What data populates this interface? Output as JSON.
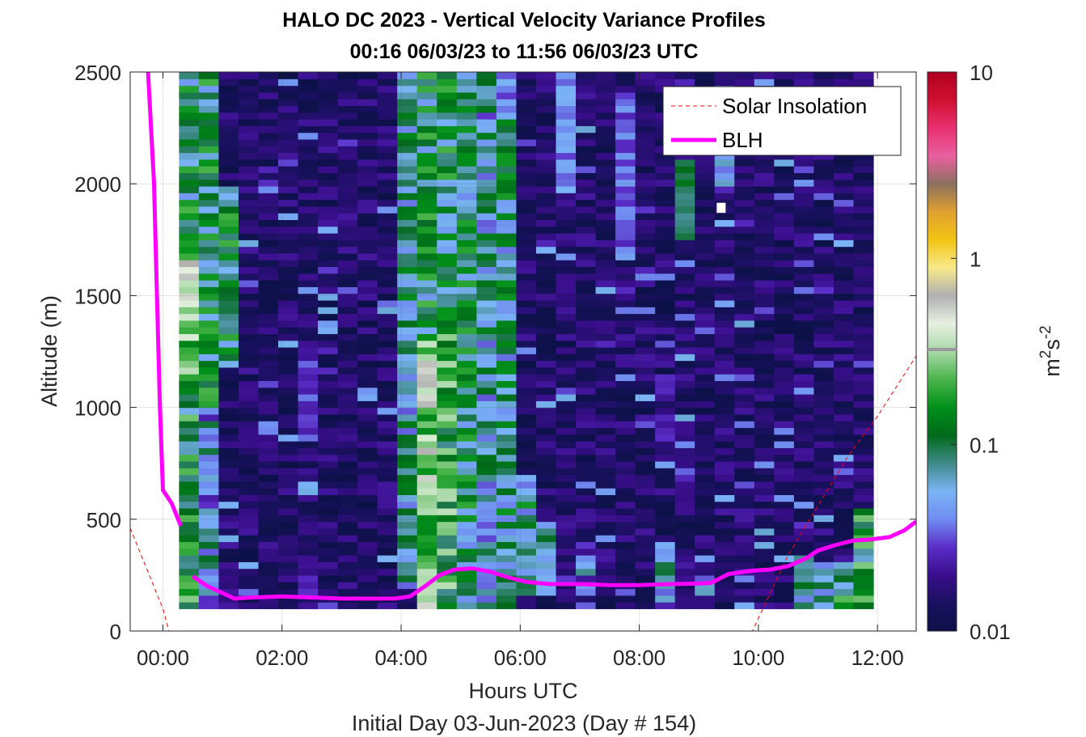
{
  "chart_data": {
    "type": "heatmap",
    "title_line1": "HALO DC 2023 - Vertical Velocity Variance Profiles",
    "title_line2": "00:16 06/03/23 to 11:56 06/03/23  UTC",
    "xlabel": "Hours UTC",
    "ylabel": "Altitude (m)",
    "footer": "Initial Day 03-Jun-2023 (Day # 154)",
    "xlim": [
      -0.55,
      12.65
    ],
    "ylim": [
      0,
      2500
    ],
    "x_ticks": [
      0,
      2,
      4,
      6,
      8,
      10,
      12
    ],
    "x_tick_labels": [
      "00:00",
      "02:00",
      "04:00",
      "06:00",
      "08:00",
      "10:00",
      "12:00"
    ],
    "y_ticks": [
      0,
      500,
      1000,
      1500,
      2000,
      2500
    ],
    "y_tick_labels": [
      "0",
      "500",
      "1000",
      "1500",
      "2000",
      "2500"
    ],
    "grid": true,
    "legend_position": "top-right",
    "legend": [
      {
        "label": "Solar Insolation",
        "color": "#ff0000",
        "style": "dashed"
      },
      {
        "label": "BLH",
        "color": "#ff00ff",
        "style": "solid"
      }
    ],
    "colorbar": {
      "label_base": "m",
      "label_exp1": "2",
      "label_mid": "s",
      "label_exp2": "-2",
      "scale": "log",
      "ticks": [
        0.01,
        0.1,
        1,
        10
      ],
      "tick_labels": [
        "0.01",
        "0.1",
        "1",
        "10"
      ],
      "colors": [
        "#0c1148",
        "#1a1060",
        "#3a0e8c",
        "#5a2ec8",
        "#6f8cf0",
        "#7ab4f5",
        "#3f8a8a",
        "#006a1a",
        "#00901a",
        "#4ab44a",
        "#a8d8a8",
        "#e6f0e0",
        "#b0b0b0",
        "#f7e98a",
        "#f2c414",
        "#e0a030",
        "#8c7060",
        "#e860a0",
        "#e83070",
        "#d01030",
        "#b00020"
      ]
    },
    "heatmap": {
      "time_start_hours": 0.27,
      "time_end_hours": 11.93,
      "bin_minutes": 20,
      "altitude_start_m": 100,
      "altitude_end_m": 2500,
      "gate_m": 30,
      "background_log10": -2,
      "column_profiles_log10": [
        {
          "col": 0,
          "lo": 100,
          "hi": 1000,
          "v": -0.9
        },
        {
          "col": 0,
          "lo": 1000,
          "hi": 1400,
          "v": -0.7
        },
        {
          "col": 0,
          "lo": 1400,
          "hi": 1700,
          "v": -0.5
        },
        {
          "col": 0,
          "lo": 1700,
          "hi": 2500,
          "v": -1.0
        },
        {
          "col": 1,
          "lo": 100,
          "hi": 1000,
          "v": -1.3
        },
        {
          "col": 1,
          "lo": 1000,
          "hi": 2500,
          "v": -1.0
        },
        {
          "col": 2,
          "lo": 1200,
          "hi": 2000,
          "v": -1.0
        },
        {
          "col": 11,
          "lo": 200,
          "hi": 2500,
          "v": -1.15
        },
        {
          "col": 12,
          "lo": 100,
          "hi": 1300,
          "v": -0.55
        },
        {
          "col": 12,
          "lo": 1300,
          "hi": 2500,
          "v": -1.0
        },
        {
          "col": 13,
          "lo": 100,
          "hi": 1500,
          "v": -0.8
        },
        {
          "col": 13,
          "lo": 1500,
          "hi": 2500,
          "v": -1.0
        },
        {
          "col": 14,
          "lo": 100,
          "hi": 2500,
          "v": -1.05
        },
        {
          "col": 15,
          "lo": 100,
          "hi": 2500,
          "v": -1.2
        },
        {
          "col": 16,
          "lo": 100,
          "hi": 2500,
          "v": -1.1
        },
        {
          "col": 17,
          "lo": 150,
          "hi": 700,
          "v": -1.1
        },
        {
          "col": 18,
          "lo": 150,
          "hi": 500,
          "v": -1.3
        },
        {
          "col": 20,
          "lo": 150,
          "hi": 400,
          "v": -1.4
        },
        {
          "col": 24,
          "lo": 100,
          "hi": 400,
          "v": -1.3
        },
        {
          "col": 26,
          "lo": 150,
          "hi": 350,
          "v": -1.45
        },
        {
          "col": 31,
          "lo": 100,
          "hi": 350,
          "v": -1.2
        },
        {
          "col": 32,
          "lo": 100,
          "hi": 320,
          "v": -1.1
        },
        {
          "col": 33,
          "lo": 100,
          "hi": 320,
          "v": -0.95
        },
        {
          "col": 34,
          "lo": 100,
          "hi": 550,
          "v": -0.9
        }
      ],
      "spot_profiles_log10": [
        {
          "col": 6,
          "lo": 850,
          "hi": 1200,
          "v": -1.5
        },
        {
          "col": 6,
          "lo": 150,
          "hi": 350,
          "v": -1.6
        },
        {
          "col": 12,
          "lo": 1050,
          "hi": 1200,
          "v": -0.3
        },
        {
          "col": 12,
          "lo": 600,
          "hi": 700,
          "v": -0.35
        },
        {
          "col": 16,
          "lo": 2300,
          "hi": 2500,
          "v": -1.4
        },
        {
          "col": 19,
          "lo": 1950,
          "hi": 2500,
          "v": -1.4
        },
        {
          "col": 22,
          "lo": 1650,
          "hi": 2400,
          "v": -1.45
        },
        {
          "col": 25,
          "lo": 1750,
          "hi": 2100,
          "v": -1.0
        },
        {
          "col": 25,
          "lo": 2000,
          "hi": 2500,
          "v": -1.7
        },
        {
          "col": 27,
          "lo": 2000,
          "hi": 2450,
          "v": -1.3
        },
        {
          "col": 24,
          "lo": 800,
          "hi": 1150,
          "v": -1.7
        },
        {
          "col": 25,
          "lo": 650,
          "hi": 800,
          "v": -1.6
        }
      ],
      "missing_block": {
        "t_from": 9.3,
        "t_to": 9.45,
        "alt_from": 1870,
        "alt_to": 1915
      }
    },
    "solar_insolation": {
      "x": [
        -0.55,
        0.0,
        0.1,
        9.75,
        9.9,
        10.5,
        11.0,
        11.5,
        12.0,
        12.65
      ],
      "y": [
        460,
        100,
        0,
        0,
        0,
        340,
        560,
        780,
        960,
        1230
      ]
    },
    "blh": {
      "segments": [
        {
          "x": [
            -0.25,
            -0.15,
            -0.1,
            -0.05,
            0.0,
            0.15,
            0.3
          ],
          "y": [
            2500,
            2000,
            1500,
            1000,
            630,
            570,
            470
          ]
        },
        {
          "x": [
            0.5,
            0.75,
            1.0,
            1.2,
            1.5,
            2.0,
            2.5,
            3.0,
            3.5,
            3.9,
            4.15,
            4.4,
            4.65,
            4.9,
            5.2,
            5.5,
            5.8,
            6.1,
            6.5,
            7.0,
            7.5,
            8.0,
            8.5,
            9.0,
            9.2,
            9.5,
            9.9,
            10.2,
            10.5,
            10.8,
            11.0,
            11.3,
            11.6,
            11.9,
            12.2,
            12.45,
            12.65
          ],
          "y": [
            245,
            200,
            170,
            145,
            150,
            155,
            150,
            145,
            145,
            145,
            155,
            200,
            250,
            275,
            280,
            265,
            240,
            220,
            210,
            210,
            205,
            205,
            210,
            212,
            215,
            255,
            270,
            275,
            290,
            325,
            360,
            385,
            405,
            410,
            420,
            450,
            490
          ]
        }
      ]
    }
  }
}
